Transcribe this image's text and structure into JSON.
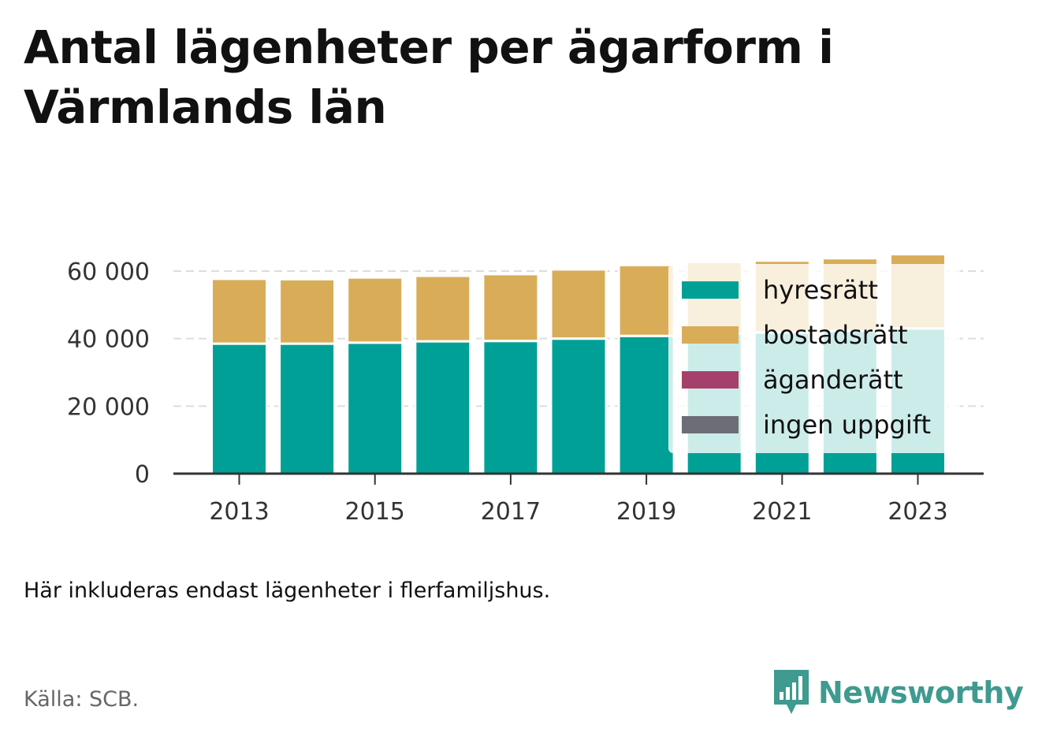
{
  "title": "Antal lägenheter per ägarform i Värmlands län",
  "note": "Här inkluderas endast lägenheter i flerfamiljshus.",
  "source": "Källa: SCB.",
  "logo": {
    "text": "Newsworthy",
    "icon": "newsworthy-chart-bubble-icon"
  },
  "colors": {
    "hyresratt": "#00a096",
    "bostadsratt": "#d9ad58",
    "aganderatt": "#a6406a",
    "ingen_uppgift": "#6d6d75",
    "grid": "#dddddd",
    "axis": "#333333",
    "logo": "#3f9a8f"
  },
  "chart_data": {
    "type": "bar",
    "stacked": true,
    "categories": [
      "2013",
      "2014",
      "2015",
      "2016",
      "2017",
      "2018",
      "2019",
      "2020",
      "2021",
      "2022",
      "2023"
    ],
    "x_tick_labels": [
      "2013",
      "2015",
      "2017",
      "2019",
      "2021",
      "2023"
    ],
    "y_ticks": [
      0,
      20000,
      40000,
      60000
    ],
    "y_tick_labels": [
      "0",
      "20 000",
      "40 000",
      "60 000"
    ],
    "ylim": [
      0,
      66000
    ],
    "grid": true,
    "legend_position": "top-right, overlapping the plot",
    "series": [
      {
        "name": "hyresrätt",
        "color": "#00a096",
        "values": [
          38500,
          38500,
          38800,
          39200,
          39300,
          40000,
          40800,
          41500,
          41800,
          42300,
          43000
        ]
      },
      {
        "name": "bostadsrätt",
        "color": "#d9ad58",
        "values": [
          19200,
          19100,
          19300,
          19400,
          19800,
          20500,
          21000,
          21000,
          21300,
          21500,
          22000
        ]
      },
      {
        "name": "äganderätt",
        "color": "#a6406a",
        "values": [
          0,
          0,
          0,
          0,
          0,
          0,
          0,
          0,
          0,
          0,
          0
        ]
      },
      {
        "name": "ingen uppgift",
        "color": "#6d6d75",
        "values": [
          0,
          0,
          0,
          0,
          0,
          0,
          0,
          0,
          0,
          0,
          0
        ]
      }
    ]
  }
}
